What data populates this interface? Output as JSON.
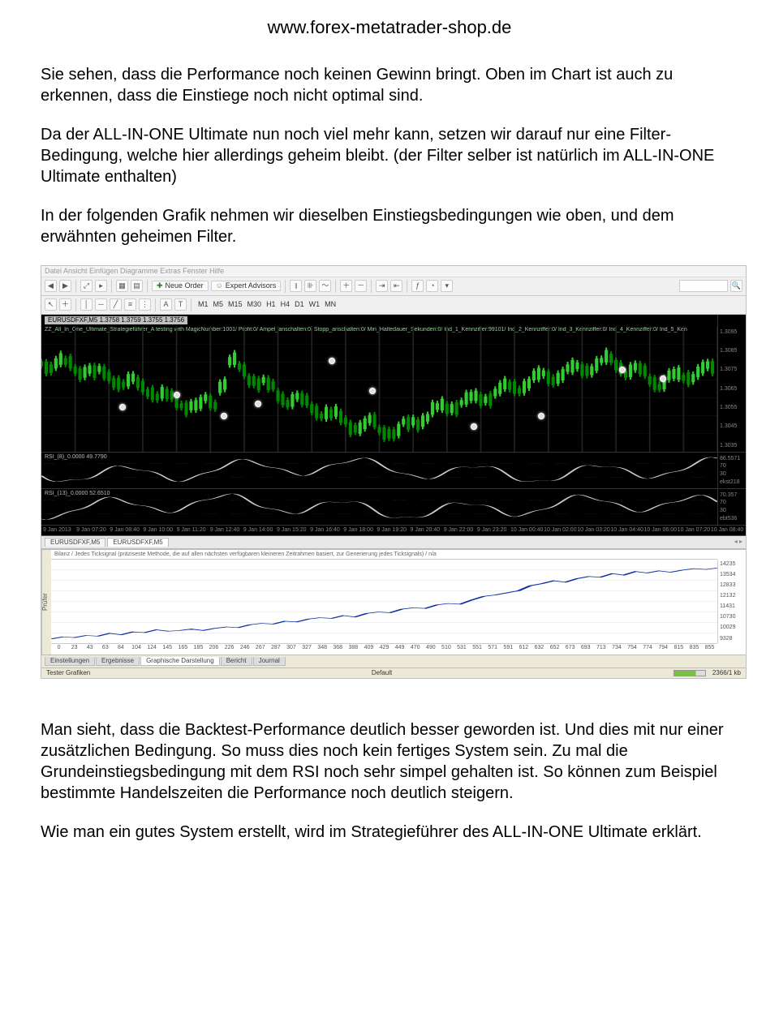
{
  "header": {
    "url": "www.forex-metatrader-shop.de"
  },
  "text": {
    "p1": "Sie sehen, dass die Performance noch keinen Gewinn bringt. Oben im Chart ist auch zu erkennen, dass die Einstiege noch nicht optimal sind.",
    "p2": "Da der ALL-IN-ONE Ultimate nun noch viel mehr kann, setzen wir darauf nur eine Filter-Bedingung, welche hier allerdings geheim bleibt. (der Filter selber ist natürlich im ALL-IN-ONE Ultimate enthalten)",
    "p3": "In der folgenden Grafik nehmen wir dieselben Einstiegsbedingungen wie oben, und dem erwähnten geheimen Filter.",
    "p4": "Man sieht, dass die Backtest-Performance deutlich besser geworden ist. Und dies mit nur einer zusätzlichen Bedingung. So muss dies noch kein fertiges System sein. Zu mal die Grundeinstiegsbedingung mit dem RSI noch sehr simpel gehalten ist. So können zum Beispiel bestimmte Handelszeiten die Performance noch deutlich steigern.",
    "p5": "Wie man ein gutes System erstellt, wird im Strategieführer des ALL-IN-ONE Ultimate erklärt."
  },
  "mt4": {
    "menubar": "Datei   Ansicht   Einfügen   Diagramme   Extras   Fenster   Hilfe",
    "toolbar1": {
      "neue_order": "Neue Order",
      "expert_advisors": "Expert Advisors"
    },
    "toolbar2": {
      "timeframes": [
        "M1",
        "M5",
        "M15",
        "M30",
        "H1",
        "H4",
        "D1",
        "W1",
        "MN"
      ]
    },
    "price": {
      "title": "EURUSDFXF,M5 1.3758 1.3759 1.3755 1.3756",
      "subtitle": "ZZ_All_In_One_Ultimate_Strategieführer_A testing with MagicNumber:1001/ Profit:0/ Ampel_anschalten:0/ Stopp_anschalten:0/ Min_Haltedauer_Sekunden:0/ Ind_1_Kennziffer:99101/ Ind_2_Kennziffer:0/ Ind_3_Kennziffer:0/ Ind_4_Kennziffer:0/ Ind_5_Ken",
      "yticks": [
        "1.3095",
        "1.3085",
        "1.3075",
        "1.3065",
        "1.3055",
        "1.3045",
        "1.3035"
      ],
      "candle_color_up": "#33cc33",
      "candle_color_dn": "#008800",
      "background": "#000000",
      "grid_color": "#222222",
      "markers": [
        {
          "x": 12,
          "y": 65
        },
        {
          "x": 20,
          "y": 55
        },
        {
          "x": 27,
          "y": 72
        },
        {
          "x": 32,
          "y": 62
        },
        {
          "x": 43,
          "y": 28
        },
        {
          "x": 49,
          "y": 52
        },
        {
          "x": 64,
          "y": 80
        },
        {
          "x": 74,
          "y": 72
        },
        {
          "x": 86,
          "y": 35
        },
        {
          "x": 92,
          "y": 42
        }
      ]
    },
    "rsi1": {
      "label": "RSI_(8)_0.0000 49.7790",
      "yticks_left": [
        "86.5571",
        "70",
        "30",
        "ekst218"
      ],
      "line_color": "#cccccc",
      "levels": [
        30,
        70
      ]
    },
    "rsi2": {
      "label": "RSI_(13)_0.0000 52.6510",
      "yticks_left": [
        "70.357",
        "70",
        "30",
        "ebt536"
      ],
      "line_color": "#cccccc",
      "levels": [
        30,
        70
      ]
    },
    "xaxis": [
      "9 Jan 2013",
      "9 Jan 07:20",
      "9 Jan 08:40",
      "9 Jan 10:00",
      "9 Jan 11:20",
      "9 Jan 12:40",
      "9 Jan 14:00",
      "9 Jan 15:20",
      "9 Jan 16:40",
      "9 Jan 18:00",
      "9 Jan 19:20",
      "9 Jan 20:40",
      "9 Jan 22:00",
      "9 Jan 23:20",
      "10 Jan 00:40",
      "10 Jan 02:00",
      "10 Jan 03:20",
      "10 Jan 04:40",
      "10 Jan 06:00",
      "10 Jan 07:20",
      "10 Jan 08:40"
    ],
    "chart_tabs": {
      "items": [
        "EURUSDFXF,M5",
        "EURUSDFXF,M5"
      ],
      "active_index": 1
    },
    "tester": {
      "side_label": "Prüfer",
      "header": "Bilanz / Jedes Ticksignal (präziseste Methode, die auf allen nächsten verfügbaren kleineren Zeitrahmen basiert, zur Generierung jedes Ticksignals) / n/a",
      "yticks": [
        "14235",
        "13534",
        "12833",
        "12132",
        "11431",
        "10730",
        "10029",
        "9328"
      ],
      "xticks": [
        "0",
        "23",
        "43",
        "63",
        "84",
        "104",
        "124",
        "145",
        "165",
        "185",
        "206",
        "226",
        "246",
        "267",
        "287",
        "307",
        "327",
        "348",
        "368",
        "388",
        "409",
        "429",
        "449",
        "470",
        "490",
        "510",
        "531",
        "551",
        "571",
        "591",
        "612",
        "632",
        "652",
        "673",
        "693",
        "713",
        "734",
        "754",
        "774",
        "794",
        "815",
        "835",
        "855"
      ],
      "line_color": "#1030a0",
      "grid_color": "#cccccc",
      "background": "#ffffff",
      "data": [
        0,
        3,
        2,
        5,
        4,
        8,
        6,
        10,
        9,
        13,
        11,
        12,
        14,
        12,
        15,
        17,
        16,
        20,
        22,
        21,
        25,
        24,
        28,
        30,
        29,
        33,
        31,
        36,
        38,
        37,
        42,
        44,
        43,
        48,
        50,
        49,
        55,
        60,
        62,
        65,
        68,
        75,
        78,
        82,
        80,
        85,
        88,
        87,
        92,
        90,
        95,
        93,
        96,
        94,
        97,
        99,
        98,
        100
      ]
    },
    "tester_tabs": {
      "items": [
        "Einstellungen",
        "Ergebnisse",
        "Graphische Darstellung",
        "Bericht",
        "Journal"
      ],
      "active_index": 2
    },
    "statusbar": {
      "left": "Tester Grafiken",
      "center": "Default",
      "right": "2366/1 kb"
    }
  }
}
